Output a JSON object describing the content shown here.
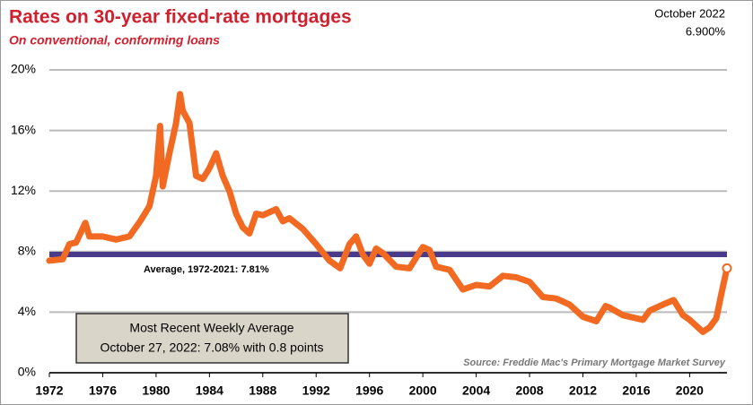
{
  "chart_data": {
    "type": "line",
    "title": "Rates on 30-year fixed-rate mortgages",
    "subtitle": "On conventional, conforming loans",
    "latest": {
      "label": "October 2022",
      "value": 6.9,
      "value_label": "6.900%"
    },
    "average": {
      "value": 7.81,
      "label": "Average, 1972-2021: 7.81%",
      "color": "#4a3a8c"
    },
    "note": [
      "Most Recent Weekly Average",
      "October 27, 2022: 7.08% with 0.8 points"
    ],
    "source": "Source: Freddie Mac's Primary Mortgage Market Survey",
    "xlim": [
      1972,
      2022.8
    ],
    "xticks": [
      1972,
      1976,
      1980,
      1984,
      1988,
      1992,
      1996,
      2000,
      2004,
      2008,
      2012,
      2016,
      2020
    ],
    "ylim": [
      0,
      20
    ],
    "yticks": [
      {
        "value": 0,
        "label": "0%"
      },
      {
        "value": 4,
        "label": "4%"
      },
      {
        "value": 8,
        "label": "8%"
      },
      {
        "value": 12,
        "label": "12%"
      },
      {
        "value": 16,
        "label": "16%"
      },
      {
        "value": 20,
        "label": "20%"
      }
    ],
    "grid": true,
    "series": [
      {
        "name": "30-year fixed rate",
        "color": "#f26a21",
        "x": [
          1972,
          1973,
          1973.5,
          1974,
          1974.7,
          1975,
          1976,
          1977,
          1978,
          1978.8,
          1979.5,
          1980,
          1980.3,
          1980.5,
          1981,
          1981.5,
          1981.8,
          1982,
          1982.5,
          1983,
          1983.5,
          1984,
          1984.5,
          1985,
          1985.5,
          1986,
          1986.5,
          1987,
          1987.5,
          1988,
          1989,
          1989.5,
          1990,
          1991,
          1992,
          1993,
          1993.8,
          1994.5,
          1995,
          1995.5,
          1996,
          1996.5,
          1997,
          1998,
          1999,
          2000,
          2000.5,
          2001,
          2002,
          2003,
          2004,
          2005,
          2006,
          2007,
          2008,
          2009,
          2010,
          2011,
          2012,
          2013,
          2013.7,
          2014,
          2015,
          2016,
          2016.5,
          2017,
          2018,
          2018.8,
          2019.5,
          2020,
          2021,
          2021.5,
          2022,
          2022.4,
          2022.8
        ],
        "values": [
          7.4,
          7.5,
          8.5,
          8.6,
          9.9,
          9.0,
          9.0,
          8.8,
          9.0,
          10.0,
          11.0,
          13.0,
          16.3,
          12.3,
          14.5,
          16.5,
          18.4,
          17.3,
          16.5,
          13.0,
          12.8,
          13.5,
          14.5,
          13.0,
          12.0,
          10.5,
          9.6,
          9.2,
          10.5,
          10.4,
          10.8,
          10.0,
          10.2,
          9.5,
          8.5,
          7.4,
          6.9,
          8.5,
          9.0,
          7.8,
          7.2,
          8.2,
          7.9,
          7.0,
          6.9,
          8.3,
          8.1,
          7.0,
          6.8,
          5.5,
          5.8,
          5.7,
          6.4,
          6.3,
          6.0,
          5.0,
          4.9,
          4.5,
          3.7,
          3.4,
          4.4,
          4.3,
          3.8,
          3.6,
          3.5,
          4.1,
          4.5,
          4.8,
          3.8,
          3.5,
          2.7,
          3.0,
          3.6,
          5.3,
          6.9
        ]
      }
    ]
  }
}
